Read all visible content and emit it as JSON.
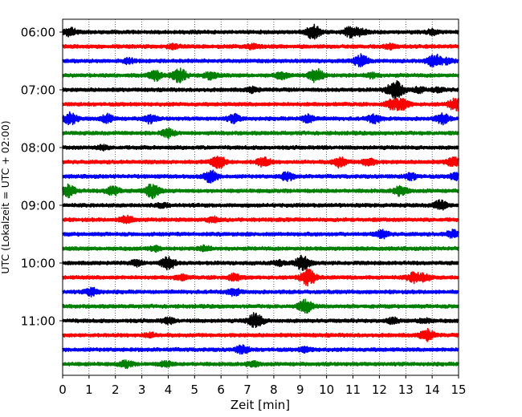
{
  "chart_data": {
    "type": "line",
    "title": "",
    "xlabel": "Zeit  [min]",
    "ylabel": "UTC (Lokalzeit = UTC + 02:00)",
    "xlim": [
      0,
      15
    ],
    "x_ticks": [
      "0",
      "1",
      "2",
      "3",
      "4",
      "5",
      "6",
      "7",
      "8",
      "9",
      "10",
      "11",
      "12",
      "13",
      "14",
      "15"
    ],
    "y_ticks": [
      "06:00",
      "07:00",
      "08:00",
      "09:00",
      "10:00",
      "11:00"
    ],
    "grid": "vertical dotted at each minute",
    "trace_interval_minutes": 15,
    "colors_cycle": [
      "#000000",
      "#ff0000",
      "#0000ff",
      "#008000"
    ],
    "series": [
      {
        "start": "06:00",
        "color": "#000000",
        "events": [
          [
            0.3,
            0.5
          ],
          [
            9.5,
            0.9
          ],
          [
            10.9,
            0.6
          ],
          [
            11.3,
            0.4
          ],
          [
            14.0,
            0.3
          ]
        ]
      },
      {
        "start": "06:15",
        "color": "#ff0000",
        "events": [
          [
            4.2,
            0.25
          ],
          [
            7.2,
            0.3
          ],
          [
            12.4,
            0.25
          ]
        ]
      },
      {
        "start": "06:30",
        "color": "#0000ff",
        "events": [
          [
            2.5,
            0.3
          ],
          [
            11.3,
            0.8
          ],
          [
            14.1,
            0.8
          ],
          [
            14.6,
            0.3
          ]
        ]
      },
      {
        "start": "06:45",
        "color": "#008000",
        "events": [
          [
            3.5,
            0.6
          ],
          [
            4.4,
            0.9
          ],
          [
            5.6,
            0.5
          ],
          [
            8.3,
            0.4
          ],
          [
            9.6,
            0.9
          ],
          [
            11.7,
            0.3
          ]
        ]
      },
      {
        "start": "07:00",
        "color": "#000000",
        "events": [
          [
            7.2,
            0.3
          ],
          [
            12.6,
            1.2
          ],
          [
            13.5,
            0.3
          ],
          [
            14.2,
            0.25
          ]
        ]
      },
      {
        "start": "07:15",
        "color": "#ff0000",
        "events": [
          [
            12.5,
            0.6
          ],
          [
            12.9,
            0.6
          ],
          [
            14.9,
            0.8
          ]
        ]
      },
      {
        "start": "07:30",
        "color": "#0000ff",
        "events": [
          [
            0.3,
            0.7
          ],
          [
            1.7,
            0.5
          ],
          [
            3.3,
            0.5
          ],
          [
            6.5,
            0.5
          ],
          [
            9.3,
            0.5
          ],
          [
            11.8,
            0.5
          ],
          [
            14.4,
            0.6
          ]
        ]
      },
      {
        "start": "07:45",
        "color": "#008000",
        "events": [
          [
            4.0,
            0.5
          ]
        ]
      },
      {
        "start": "08:00",
        "color": "#000000",
        "events": [
          [
            1.5,
            0.25
          ]
        ]
      },
      {
        "start": "08:15",
        "color": "#ff0000",
        "events": [
          [
            5.9,
            0.8
          ],
          [
            7.6,
            0.6
          ],
          [
            10.5,
            0.6
          ],
          [
            11.6,
            0.5
          ],
          [
            14.8,
            0.6
          ]
        ]
      },
      {
        "start": "08:30",
        "color": "#0000ff",
        "events": [
          [
            5.6,
            0.7
          ],
          [
            8.5,
            0.5
          ],
          [
            13.2,
            0.4
          ],
          [
            14.9,
            0.4
          ]
        ]
      },
      {
        "start": "08:45",
        "color": "#008000",
        "events": [
          [
            0.2,
            0.8
          ],
          [
            1.9,
            0.6
          ],
          [
            3.4,
            0.9
          ],
          [
            12.8,
            0.6
          ]
        ]
      },
      {
        "start": "09:00",
        "color": "#000000",
        "events": [
          [
            3.8,
            0.25
          ],
          [
            14.3,
            0.6
          ]
        ]
      },
      {
        "start": "09:15",
        "color": "#ff0000",
        "events": [
          [
            2.4,
            0.5
          ],
          [
            5.7,
            0.3
          ]
        ]
      },
      {
        "start": "09:30",
        "color": "#0000ff",
        "events": [
          [
            12.1,
            0.5
          ],
          [
            14.8,
            0.5
          ]
        ]
      },
      {
        "start": "09:45",
        "color": "#008000",
        "events": [
          [
            3.5,
            0.3
          ],
          [
            5.4,
            0.3
          ]
        ]
      },
      {
        "start": "10:00",
        "color": "#000000",
        "events": [
          [
            2.8,
            0.3
          ],
          [
            4.0,
            0.8
          ],
          [
            8.2,
            0.3
          ],
          [
            9.1,
            0.9
          ]
        ]
      },
      {
        "start": "10:15",
        "color": "#ff0000",
        "events": [
          [
            4.5,
            0.3
          ],
          [
            6.5,
            0.4
          ],
          [
            9.3,
            1.0
          ],
          [
            13.3,
            0.6
          ],
          [
            13.7,
            0.4
          ]
        ]
      },
      {
        "start": "10:30",
        "color": "#0000ff",
        "events": [
          [
            1.1,
            0.5
          ],
          [
            6.5,
            0.4
          ]
        ]
      },
      {
        "start": "10:45",
        "color": "#008000",
        "events": [
          [
            9.2,
            0.8
          ]
        ]
      },
      {
        "start": "11:00",
        "color": "#000000",
        "events": [
          [
            4.0,
            0.35
          ],
          [
            7.3,
            1.0
          ],
          [
            12.5,
            0.3
          ],
          [
            13.7,
            0.3
          ]
        ]
      },
      {
        "start": "11:15",
        "color": "#ff0000",
        "events": [
          [
            13.8,
            0.7
          ],
          [
            3.3,
            0.25
          ]
        ]
      },
      {
        "start": "11:30",
        "color": "#0000ff",
        "events": [
          [
            6.8,
            0.5
          ],
          [
            9.2,
            0.3
          ]
        ]
      },
      {
        "start": "11:45",
        "color": "#008000",
        "events": [
          [
            2.4,
            0.4
          ],
          [
            3.9,
            0.3
          ],
          [
            7.2,
            0.3
          ]
        ]
      }
    ]
  }
}
